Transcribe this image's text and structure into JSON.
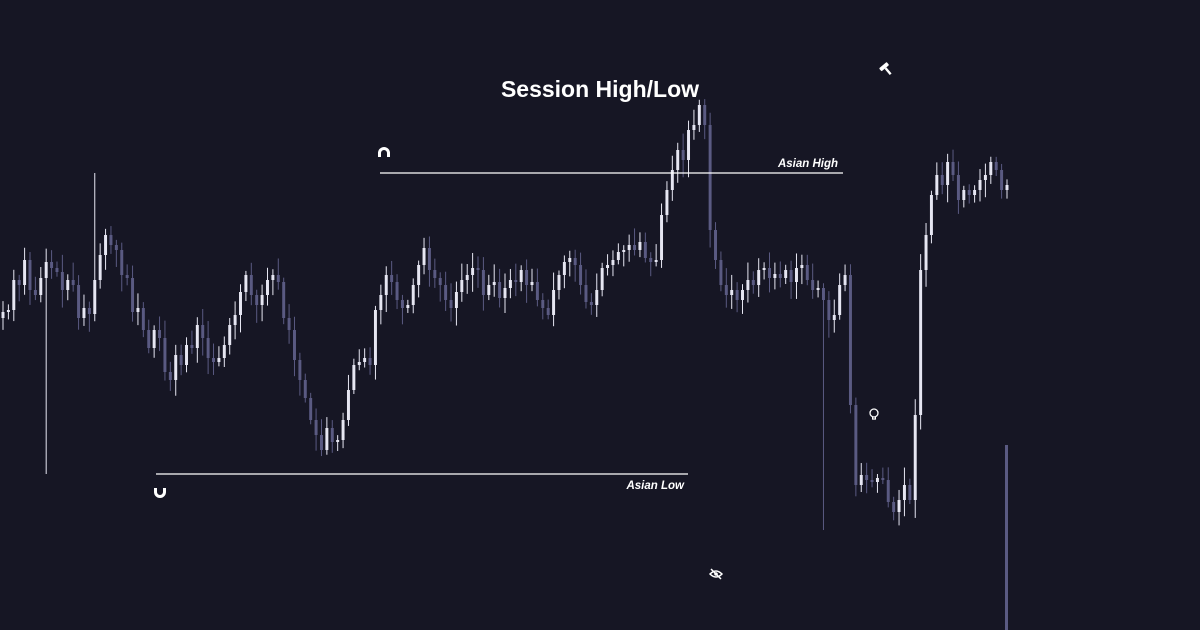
{
  "title": "Session High/Low",
  "colors": {
    "background": "#161624",
    "up_candle": "#e6e6f2",
    "down_candle": "#5a5a82",
    "level_line": "#ffffff",
    "icon": "#ffffff"
  },
  "annotations": {
    "asian_high": "Asian High",
    "asian_low": "Asian Low"
  },
  "icons": [
    "magnet-icon",
    "magnet-icon",
    "eye-off-icon",
    "hammer-icon",
    "lightbulb-icon"
  ],
  "chart_data": {
    "type": "candlestick",
    "title": "Session High/Low",
    "xlabel": "",
    "ylabel": "",
    "grid": false,
    "ylim": [
      0,
      630
    ],
    "closes": [
      318,
      320,
      350,
      345,
      370,
      340,
      335,
      352,
      368,
      362,
      358,
      340,
      350,
      345,
      312,
      322,
      316,
      350,
      375,
      395,
      385,
      380,
      355,
      352,
      318,
      322,
      300,
      282,
      300,
      292,
      258,
      250,
      275,
      265,
      285,
      282,
      305,
      292,
      272,
      268,
      272,
      285,
      305,
      315,
      338,
      355,
      335,
      325,
      335,
      350,
      355,
      348,
      312,
      300,
      270,
      250,
      232,
      210,
      195,
      180,
      202,
      188,
      190,
      210,
      240,
      265,
      268,
      272,
      265,
      320,
      335,
      355,
      348,
      330,
      322,
      325,
      345,
      365,
      382,
      360,
      352,
      345,
      330,
      322,
      338,
      350,
      355,
      362,
      360,
      335,
      345,
      348,
      332,
      342,
      350,
      348,
      360,
      345,
      348,
      330,
      322,
      315,
      340,
      355,
      368,
      372,
      365,
      345,
      328,
      325,
      340,
      362,
      365,
      370,
      378,
      380,
      385,
      380,
      388,
      372,
      368,
      370,
      415,
      440,
      460,
      480,
      470,
      500,
      505,
      525,
      505,
      400,
      370,
      345,
      335,
      340,
      330,
      340,
      350,
      345,
      360,
      362,
      352,
      356,
      352,
      360,
      348,
      362,
      365,
      350,
      340,
      342,
      330,
      310,
      315,
      345,
      355,
      225,
      145,
      155,
      150,
      148,
      152,
      150,
      128,
      118,
      130,
      145,
      130,
      215,
      360,
      395,
      435,
      455,
      445,
      468,
      455,
      430,
      440,
      435,
      440,
      450,
      455,
      468,
      460,
      440,
      445
    ]
  }
}
